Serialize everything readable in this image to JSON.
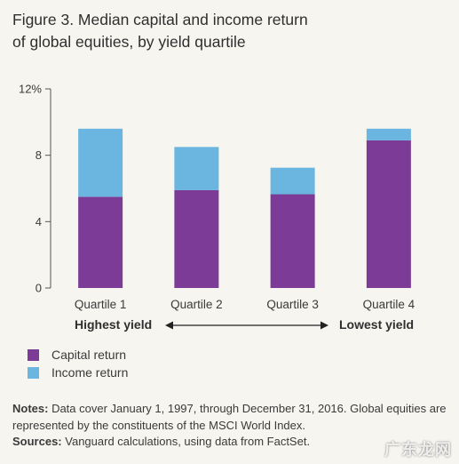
{
  "figure": {
    "title_line1": "Figure 3. Median capital and income return",
    "title_line2": "of global equities, by yield quartile"
  },
  "chart_data": {
    "type": "bar",
    "stacked": true,
    "categories": [
      "Quartile 1",
      "Quartile 2",
      "Quartile 3",
      "Quartile 4"
    ],
    "series": [
      {
        "name": "Capital return",
        "values": [
          5.5,
          5.9,
          5.65,
          8.9
        ],
        "color": "#7b3b96"
      },
      {
        "name": "Income return",
        "values": [
          4.1,
          2.6,
          1.6,
          0.7
        ],
        "color": "#6bb6e0"
      }
    ],
    "yticks": [
      "12%",
      "8",
      "4",
      "0"
    ],
    "ytick_values": [
      12,
      8,
      4,
      0
    ],
    "ylim": [
      0,
      12
    ],
    "grid": false,
    "legend_position": "bottom-left"
  },
  "axis_annotation": {
    "left": "Highest yield",
    "right": "Lowest yield"
  },
  "notes": {
    "notes_label": "Notes:",
    "notes_text": " Data cover January 1, 1997, through December 31, 2016. Global equities are represented by the constituents of the MSCI World Index.",
    "sources_label": "Sources:",
    "sources_text": " Vanguard calculations, using data from FactSet."
  },
  "watermark": "广东龙网"
}
